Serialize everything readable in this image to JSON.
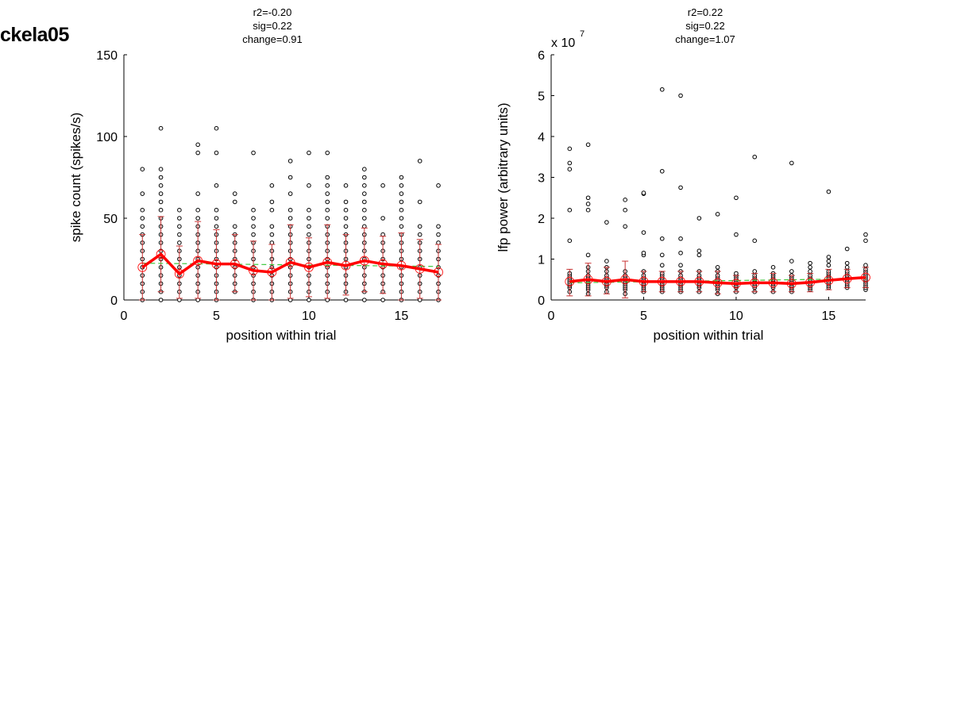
{
  "page": {
    "title": "ckela05"
  },
  "colors": {
    "mean_line": "#ff0000",
    "error_bar": "#c83232",
    "fit_line": "#3cc83c",
    "points": "#000000"
  },
  "chart_data": [
    {
      "type": "scatter",
      "title_lines": [
        "r2=-0.20",
        "sig=0.22",
        "change=0.91"
      ],
      "xlabel": "position within trial",
      "ylabel": "spike count (spikes/s)",
      "xlim": [
        0,
        17
      ],
      "ylim": [
        0,
        150
      ],
      "xticks": [
        0,
        5,
        10,
        15
      ],
      "yticks": [
        0,
        50,
        100,
        150
      ],
      "multiplier": "",
      "grid": false,
      "x": [
        1,
        2,
        3,
        4,
        5,
        6,
        7,
        8,
        9,
        10,
        11,
        12,
        13,
        14,
        15,
        16,
        17
      ],
      "mean": [
        20,
        28,
        16,
        24,
        22,
        22,
        18,
        17,
        23,
        20,
        23,
        21,
        24,
        22,
        21,
        19,
        17
      ],
      "err_low": [
        0,
        5,
        1,
        1,
        0,
        5,
        0,
        0,
        1,
        2,
        1,
        3,
        5,
        4,
        0,
        1,
        0
      ],
      "err_high": [
        40,
        51,
        33,
        48,
        43,
        40,
        36,
        34,
        46,
        38,
        46,
        40,
        44,
        39,
        41,
        37,
        34
      ],
      "fit": {
        "x": [
          1,
          17
        ],
        "y": [
          22.5,
          20.5
        ]
      },
      "scatter": [
        [
          0,
          5,
          10,
          15,
          20,
          25,
          30,
          35,
          40,
          45,
          50,
          55,
          65,
          80
        ],
        [
          0,
          5,
          10,
          15,
          20,
          25,
          30,
          35,
          40,
          45,
          50,
          55,
          60,
          65,
          70,
          75,
          80,
          105
        ],
        [
          0,
          5,
          10,
          15,
          20,
          25,
          30,
          35,
          40,
          45,
          50,
          55
        ],
        [
          0,
          5,
          10,
          15,
          20,
          25,
          30,
          35,
          40,
          45,
          50,
          55,
          65,
          90,
          95
        ],
        [
          0,
          5,
          10,
          15,
          20,
          25,
          30,
          35,
          40,
          45,
          50,
          55,
          70,
          90,
          105
        ],
        [
          5,
          10,
          15,
          20,
          25,
          30,
          35,
          40,
          45,
          60,
          65
        ],
        [
          0,
          5,
          10,
          15,
          20,
          25,
          30,
          35,
          40,
          45,
          50,
          55,
          90
        ],
        [
          0,
          5,
          10,
          15,
          20,
          25,
          30,
          35,
          40,
          45,
          55,
          60,
          70
        ],
        [
          0,
          5,
          10,
          15,
          20,
          25,
          30,
          35,
          40,
          45,
          50,
          55,
          65,
          75,
          85
        ],
        [
          0,
          5,
          10,
          15,
          20,
          25,
          30,
          35,
          40,
          45,
          50,
          55,
          70,
          90
        ],
        [
          0,
          5,
          10,
          15,
          20,
          25,
          30,
          35,
          40,
          45,
          50,
          55,
          60,
          65,
          70,
          75,
          90
        ],
        [
          0,
          5,
          10,
          15,
          20,
          25,
          30,
          35,
          40,
          45,
          50,
          55,
          60,
          70
        ],
        [
          0,
          5,
          10,
          15,
          20,
          25,
          30,
          35,
          40,
          45,
          50,
          55,
          60,
          65,
          70,
          75,
          80
        ],
        [
          0,
          5,
          10,
          15,
          20,
          25,
          30,
          35,
          40,
          50,
          70
        ],
        [
          0,
          5,
          10,
          15,
          20,
          25,
          30,
          35,
          40,
          45,
          50,
          55,
          60,
          65,
          70,
          75
        ],
        [
          0,
          5,
          10,
          15,
          20,
          25,
          30,
          35,
          40,
          45,
          60,
          85
        ],
        [
          0,
          5,
          10,
          15,
          20,
          25,
          30,
          35,
          40,
          45,
          70
        ]
      ]
    },
    {
      "type": "scatter",
      "title_lines": [
        "r2=0.22",
        "sig=0.22",
        "change=1.07"
      ],
      "xlabel": "position within trial",
      "ylabel": "lfp power (arbitrary units)",
      "xlim": [
        0,
        17
      ],
      "ylim": [
        0,
        6
      ],
      "xticks": [
        0,
        5,
        10,
        15
      ],
      "yticks": [
        0,
        1,
        2,
        3,
        4,
        5,
        6
      ],
      "multiplier": "x 10",
      "multiplier_exp": "7",
      "grid": false,
      "x": [
        1,
        2,
        3,
        4,
        5,
        6,
        7,
        8,
        9,
        10,
        11,
        12,
        13,
        14,
        15,
        16,
        17
      ],
      "mean": [
        0.45,
        0.5,
        0.45,
        0.5,
        0.45,
        0.45,
        0.45,
        0.45,
        0.42,
        0.4,
        0.42,
        0.42,
        0.4,
        0.43,
        0.48,
        0.52,
        0.55
      ],
      "err_low": [
        0.1,
        0.1,
        0.15,
        0.05,
        0.2,
        0.2,
        0.2,
        0.2,
        0.15,
        0.2,
        0.2,
        0.2,
        0.2,
        0.2,
        0.25,
        0.3,
        0.3
      ],
      "err_high": [
        0.75,
        0.9,
        0.8,
        0.95,
        0.7,
        0.7,
        0.7,
        0.7,
        0.7,
        0.6,
        0.65,
        0.65,
        0.6,
        0.65,
        0.75,
        0.75,
        0.8
      ],
      "fit": {
        "x": [
          1,
          17
        ],
        "y": [
          0.42,
          0.52
        ]
      },
      "scatter": [
        [
          0.2,
          0.3,
          0.35,
          0.4,
          0.45,
          0.5,
          0.55,
          0.6,
          0.65,
          1.45,
          2.2,
          3.2,
          3.35,
          3.7
        ],
        [
          0.15,
          0.25,
          0.3,
          0.35,
          0.4,
          0.45,
          0.5,
          0.55,
          0.6,
          0.7,
          0.8,
          1.1,
          2.2,
          2.35,
          2.5,
          3.8
        ],
        [
          0.2,
          0.3,
          0.35,
          0.4,
          0.45,
          0.5,
          0.55,
          0.6,
          0.7,
          0.8,
          0.95,
          1.9
        ],
        [
          0.15,
          0.25,
          0.3,
          0.35,
          0.4,
          0.45,
          0.5,
          0.55,
          0.6,
          0.7,
          1.8,
          2.2,
          2.45
        ],
        [
          0.2,
          0.25,
          0.3,
          0.35,
          0.4,
          0.45,
          0.5,
          0.55,
          0.6,
          0.7,
          1.1,
          1.15,
          1.65,
          2.6,
          2.62
        ],
        [
          0.2,
          0.25,
          0.3,
          0.35,
          0.4,
          0.45,
          0.5,
          0.55,
          0.6,
          0.65,
          0.85,
          1.1,
          1.5,
          3.15,
          5.15
        ],
        [
          0.2,
          0.25,
          0.3,
          0.35,
          0.4,
          0.45,
          0.5,
          0.55,
          0.6,
          0.7,
          0.85,
          1.15,
          1.5,
          2.75,
          5.0
        ],
        [
          0.2,
          0.3,
          0.35,
          0.4,
          0.45,
          0.5,
          0.55,
          0.6,
          0.7,
          1.1,
          1.2,
          2.0
        ],
        [
          0.15,
          0.25,
          0.3,
          0.35,
          0.4,
          0.45,
          0.5,
          0.55,
          0.6,
          0.7,
          0.8,
          2.1
        ],
        [
          0.2,
          0.3,
          0.35,
          0.4,
          0.45,
          0.5,
          0.55,
          0.6,
          0.65,
          1.6,
          2.5
        ],
        [
          0.2,
          0.3,
          0.35,
          0.4,
          0.45,
          0.5,
          0.55,
          0.6,
          0.7,
          1.45,
          3.5
        ],
        [
          0.2,
          0.3,
          0.35,
          0.4,
          0.45,
          0.5,
          0.55,
          0.6,
          0.65,
          0.8
        ],
        [
          0.2,
          0.25,
          0.3,
          0.35,
          0.4,
          0.45,
          0.5,
          0.55,
          0.6,
          0.7,
          0.95,
          3.35
        ],
        [
          0.25,
          0.3,
          0.35,
          0.4,
          0.45,
          0.5,
          0.55,
          0.6,
          0.7,
          0.8,
          0.9
        ],
        [
          0.3,
          0.35,
          0.4,
          0.45,
          0.5,
          0.55,
          0.6,
          0.65,
          0.7,
          0.85,
          0.95,
          1.05,
          2.65
        ],
        [
          0.3,
          0.35,
          0.4,
          0.45,
          0.5,
          0.55,
          0.6,
          0.65,
          0.7,
          0.8,
          0.9,
          1.25
        ],
        [
          0.25,
          0.3,
          0.35,
          0.4,
          0.45,
          0.5,
          0.55,
          0.6,
          0.65,
          0.7,
          0.75,
          0.85,
          1.45,
          1.6
        ]
      ]
    }
  ]
}
